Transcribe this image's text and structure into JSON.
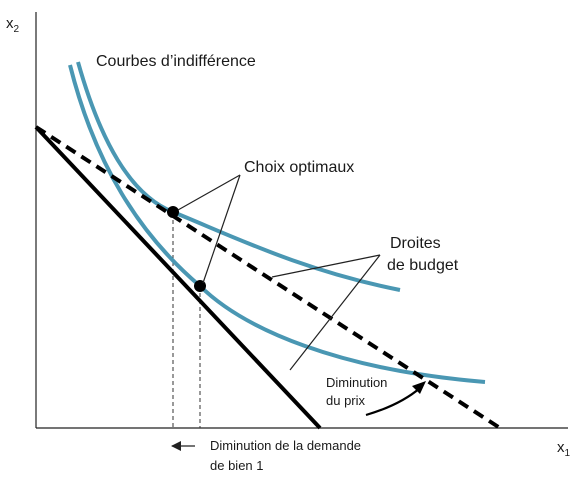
{
  "axes": {
    "x_label": "x",
    "x_subscript": "1",
    "y_label": "x",
    "y_subscript": "2"
  },
  "labels": {
    "indifference_curves": "Courbes d’indifférence",
    "optimal_choices": "Choix optimaux",
    "budget_lines_1": "Droites",
    "budget_lines_2": "de budget",
    "price_decrease_1": "Diminution",
    "price_decrease_2": "du prix",
    "demand_decrease_1": "Diminution de la demande",
    "demand_decrease_2": "de bien 1"
  },
  "colors": {
    "curve": "#4a97b3",
    "line": "#000000",
    "text": "#1a1a1a"
  },
  "elements": {
    "indifference_curves": 2,
    "budget_lines": [
      {
        "style": "solid"
      },
      {
        "style": "dashed"
      }
    ],
    "optimal_points": 2
  }
}
